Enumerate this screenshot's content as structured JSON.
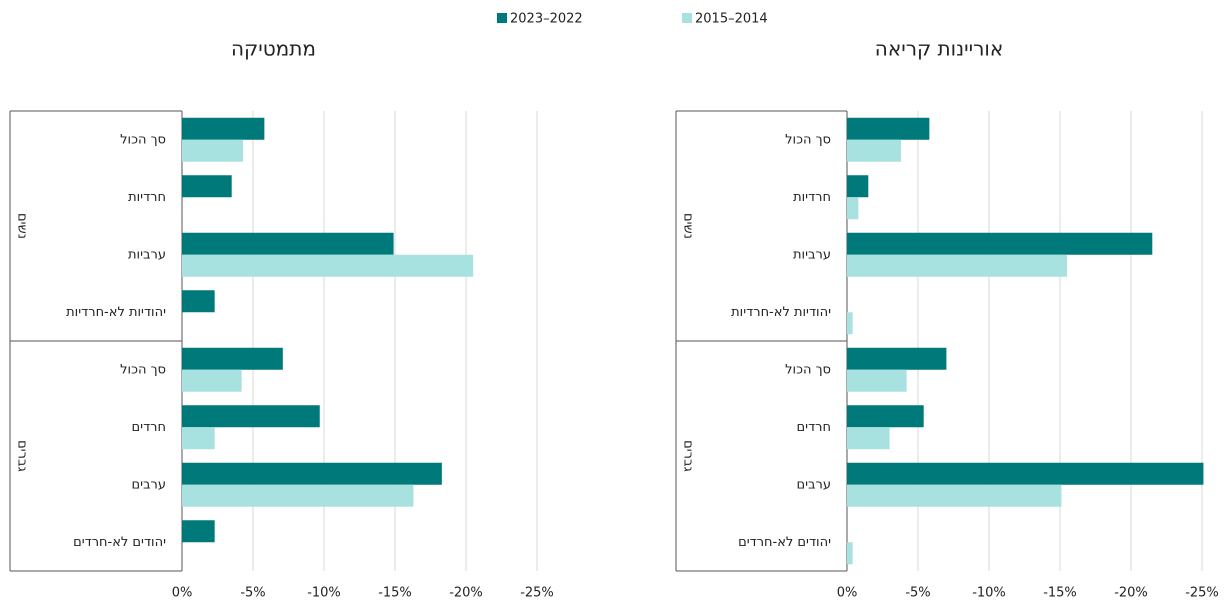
{
  "legend": [
    {
      "name": "2023–2022",
      "color": "#00797a"
    },
    {
      "name": "2015–2014",
      "color": "#a8e2e0"
    }
  ],
  "chart_data": [
    {
      "type": "bar",
      "title": "מתמטיקה",
      "groups": [
        {
          "label": "נשים",
          "categories": [
            "סך הכול",
            "חרדיות",
            "ערביות",
            "יהודיות לא-חרדיות"
          ]
        },
        {
          "label": "גברים",
          "categories": [
            "סך הכול",
            "חרדים",
            "ערבים",
            "יהודים לא-חרדים"
          ]
        }
      ],
      "series": [
        {
          "values": [
            -5.8,
            -3.5,
            -14.9,
            -2.3,
            -7.1,
            -9.7,
            -18.3,
            -2.3
          ]
        },
        {
          "values": [
            -4.3,
            null,
            -20.5,
            null,
            -4.2,
            -2.3,
            -16.3,
            null
          ]
        }
      ],
      "xlim": [
        0,
        -25
      ],
      "xticks": [
        {
          "value": 0,
          "label": "0%"
        },
        {
          "value": -5,
          "label": "-5%"
        },
        {
          "value": -10,
          "label": "-10%"
        },
        {
          "value": -15,
          "label": "-15%"
        },
        {
          "value": -20,
          "label": "-20%"
        },
        {
          "value": -25,
          "label": "-25%"
        }
      ],
      "grid": true
    },
    {
      "type": "bar",
      "title": "אוריינות קריאה",
      "groups": [
        {
          "label": "נשים",
          "categories": [
            "סך הכול",
            "חרדיות",
            "ערביות",
            "יהודיות לא-חרדיות"
          ]
        },
        {
          "label": "גברים",
          "categories": [
            "סך הכול",
            "חרדים",
            "ערבים",
            "יהודים לא-חרדים"
          ]
        }
      ],
      "series": [
        {
          "values": [
            -5.8,
            -1.5,
            -21.5,
            null,
            -7.0,
            -5.4,
            -25.1,
            null
          ]
        },
        {
          "values": [
            -3.8,
            -0.8,
            -15.5,
            -0.4,
            -4.2,
            -3.0,
            -15.1,
            -0.4
          ]
        }
      ],
      "xlim": [
        0,
        -25
      ],
      "xticks": [
        {
          "value": 0,
          "label": "0%"
        },
        {
          "value": -5,
          "label": "-5%"
        },
        {
          "value": -10,
          "label": "-10%"
        },
        {
          "value": -15,
          "label": "-15%"
        },
        {
          "value": -20,
          "label": "-20%"
        },
        {
          "value": -25,
          "label": "-25%"
        }
      ],
      "grid": true
    }
  ]
}
